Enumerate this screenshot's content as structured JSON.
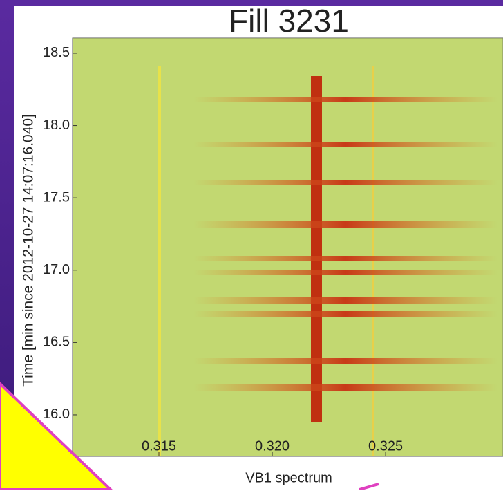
{
  "chart_data": {
    "type": "heatmap",
    "title": "Fill 3231",
    "x_label": "VB1 spectrum",
    "y_label": "Time [min since 2012-10-27 14:07:16.040]",
    "xlim": [
      0.31119,
      0.33018
    ],
    "ylim": [
      15.713,
      18.605
    ],
    "xticks": [
      0.315,
      {
        "value": 0.32,
        "label": "0.320"
      },
      0.325
    ],
    "yticks": [
      {
        "value": 16,
        "label": "16.0"
      },
      16.5,
      {
        "value": 17,
        "label": "17.0"
      },
      17.5,
      {
        "value": 18,
        "label": "18.0"
      },
      18.5
    ]
  }
}
